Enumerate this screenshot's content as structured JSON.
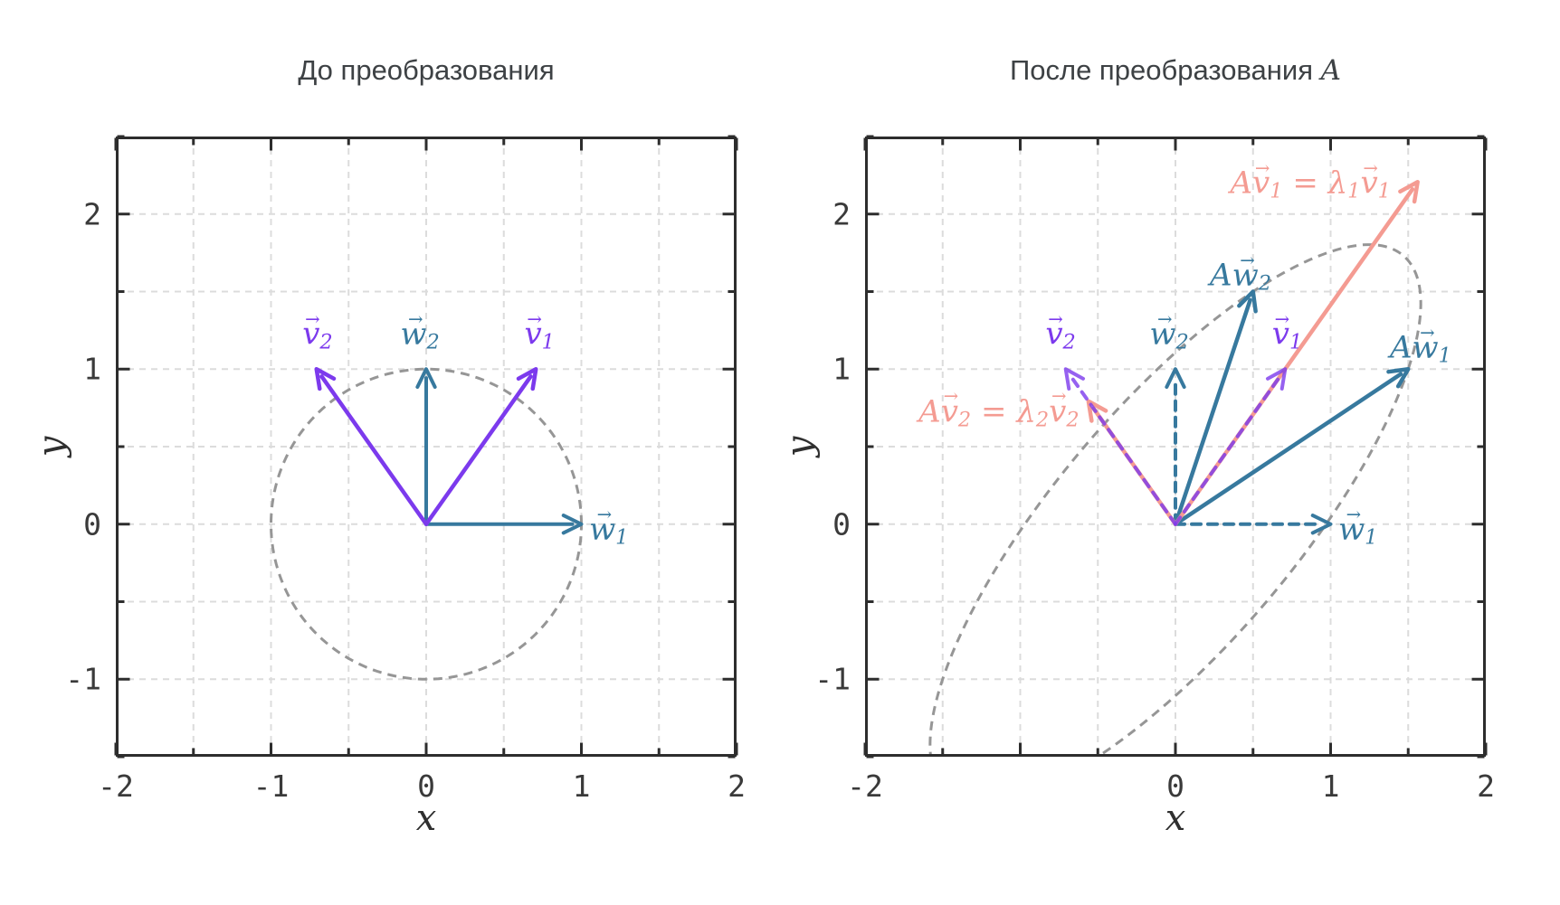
{
  "page": {
    "background": "#ffffff"
  },
  "colors": {
    "purple": "#7C3AED",
    "teal": "#37799E",
    "salmon": "#F49B92",
    "circle_gray": "#969696",
    "grid_gray": "#dcdcdc",
    "axis_dark": "#2d2d2d",
    "tick_text": "#3a3a3a",
    "title_text": "#3d4144"
  },
  "panels": [
    {
      "name": "before",
      "title": {
        "text": "До преобразования",
        "math": ""
      },
      "xlabel": "x",
      "ylabel": "y"
    },
    {
      "name": "after",
      "title": {
        "text": "После преобразования ",
        "math": "A"
      },
      "xlabel": "x",
      "ylabel": "y"
    }
  ],
  "chart_data": [
    {
      "type": "vector-plot",
      "name": "before-transformation",
      "title": "До преобразования",
      "xlabel": "x",
      "ylabel": "y",
      "xlim": [
        -2,
        2
      ],
      "ylim": [
        -1.5,
        2.5
      ],
      "minor_tick_step": 0.5,
      "grid": {
        "step": 0.5,
        "color": "#dcdcdc",
        "dash": "7 6",
        "width": 2
      },
      "xticks": [
        {
          "v": -2,
          "label": "-2"
        },
        {
          "v": -1,
          "label": "-1"
        },
        {
          "v": 0,
          "label": "0"
        },
        {
          "v": 1,
          "label": "1"
        },
        {
          "v": 2,
          "label": "2"
        }
      ],
      "yticks": [
        {
          "v": -1,
          "label": "-1"
        },
        {
          "v": 0,
          "label": "0"
        },
        {
          "v": 1,
          "label": "1"
        },
        {
          "v": 2,
          "label": "2"
        }
      ],
      "curves": [
        {
          "name": "unit-circle",
          "matrix": [
            [
              1,
              0
            ],
            [
              0,
              1
            ]
          ],
          "color": "#969696",
          "dash": "10 7",
          "width": 3
        }
      ],
      "vectors": [
        {
          "name": "w1",
          "tip": [
            1,
            0
          ],
          "color": "#37799E",
          "width": 4
        },
        {
          "name": "w2",
          "tip": [
            0,
            1
          ],
          "color": "#37799E",
          "width": 4
        },
        {
          "name": "v1",
          "tip": [
            0.7071,
            1
          ],
          "color": "#7C3AED",
          "width": 4.5
        },
        {
          "name": "v2",
          "tip": [
            -0.7071,
            1
          ],
          "color": "#7C3AED",
          "width": 4.5
        }
      ],
      "labels": [
        {
          "name": "label-v2",
          "text": "v⃗₂",
          "pos": [
            -0.7,
            1.16
          ],
          "anchor": "middle",
          "color": "#7C3AED",
          "tokens": [
            {
              "t": "v",
              "vec": true,
              "sub": "2"
            }
          ]
        },
        {
          "name": "label-w2",
          "text": "w⃗₂",
          "pos": [
            -0.04,
            1.16
          ],
          "anchor": "middle",
          "color": "#37799E",
          "tokens": [
            {
              "t": "w",
              "vec": true,
              "sub": "2"
            }
          ]
        },
        {
          "name": "label-v1",
          "text": "v⃗₁",
          "pos": [
            0.73,
            1.16
          ],
          "anchor": "middle",
          "color": "#7C3AED",
          "tokens": [
            {
              "t": "v",
              "vec": true,
              "sub": "1"
            }
          ]
        },
        {
          "name": "label-w1",
          "text": "w⃗₁",
          "pos": [
            1.05,
            -0.1
          ],
          "anchor": "start",
          "color": "#37799E",
          "tokens": [
            {
              "t": "w",
              "vec": true,
              "sub": "1"
            }
          ]
        }
      ]
    },
    {
      "type": "vector-plot",
      "name": "after-transformation",
      "title": "После преобразования A",
      "xlabel": "x",
      "ylabel": "y",
      "xlim": [
        -2,
        2
      ],
      "ylim": [
        -1.5,
        2.5
      ],
      "minor_tick_step": 0.5,
      "grid": {
        "step": 0.5,
        "color": "#dcdcdc",
        "dash": "7 6",
        "width": 2
      },
      "transform_matrix": [
        [
          1.5,
          0.5
        ],
        [
          1.0,
          1.5
        ]
      ],
      "xticks": [
        {
          "v": -2,
          "label": "-2"
        },
        {
          "v": -1,
          "label": ""
        },
        {
          "v": 0,
          "label": "0"
        },
        {
          "v": 1,
          "label": "1"
        },
        {
          "v": 2,
          "label": "2"
        }
      ],
      "yticks": [
        {
          "v": -1,
          "label": "-1"
        },
        {
          "v": 0,
          "label": "0"
        },
        {
          "v": 1,
          "label": "1"
        },
        {
          "v": 2,
          "label": "2"
        }
      ],
      "curves": [
        {
          "name": "transformed-unit-circle",
          "matrix": [
            [
              1.5,
              0.5
            ],
            [
              1.0,
              1.5
            ]
          ],
          "color": "#969696",
          "dash": "10 7",
          "width": 3
        }
      ],
      "vectors": [
        {
          "name": "w1-original",
          "tip": [
            1,
            0
          ],
          "color": "#37799E",
          "width": 4,
          "dash": "10 8"
        },
        {
          "name": "w2-original",
          "tip": [
            0,
            1
          ],
          "color": "#37799E",
          "width": 4,
          "dash": "10 8"
        },
        {
          "name": "Aw1",
          "tip": [
            1.5,
            1
          ],
          "color": "#37799E",
          "width": 4.5
        },
        {
          "name": "Aw2",
          "tip": [
            0.5,
            1.5
          ],
          "color": "#37799E",
          "width": 4.5
        },
        {
          "name": "Av1",
          "tip": [
            1.5607,
            2.2071
          ],
          "color": "#F49B92",
          "width": 4.5
        },
        {
          "name": "Av2",
          "tip": [
            -0.5607,
            0.7929
          ],
          "color": "#F49B92",
          "width": 4.5
        },
        {
          "name": "v1-original",
          "tip": [
            0.7071,
            1
          ],
          "color": "#7C3AED",
          "width": 4,
          "dash": "9 8",
          "opacity": 0.8
        },
        {
          "name": "v2-original",
          "tip": [
            -0.7071,
            1
          ],
          "color": "#7C3AED",
          "width": 4,
          "dash": "9 8",
          "opacity": 0.8
        }
      ],
      "labels": [
        {
          "name": "label-v2",
          "text": "v⃗₂",
          "pos": [
            -0.74,
            1.16
          ],
          "anchor": "middle",
          "color": "#7C3AED",
          "tokens": [
            {
              "t": "v",
              "vec": true,
              "sub": "2"
            }
          ]
        },
        {
          "name": "label-w2",
          "text": "w⃗₂",
          "pos": [
            -0.04,
            1.16
          ],
          "anchor": "middle",
          "color": "#37799E",
          "tokens": [
            {
              "t": "w",
              "vec": true,
              "sub": "2"
            }
          ]
        },
        {
          "name": "label-v1",
          "text": "v⃗₁",
          "pos": [
            0.72,
            1.16
          ],
          "anchor": "middle",
          "color": "#7C3AED",
          "tokens": [
            {
              "t": "v",
              "vec": true,
              "sub": "1"
            }
          ]
        },
        {
          "name": "label-w1",
          "text": "w⃗₁",
          "pos": [
            1.05,
            -0.1
          ],
          "anchor": "start",
          "color": "#37799E",
          "tokens": [
            {
              "t": "w",
              "vec": true,
              "sub": "1"
            }
          ]
        },
        {
          "name": "label-Aw2",
          "text": "Aw⃗₂",
          "pos": [
            0.42,
            1.54
          ],
          "anchor": "middle",
          "color": "#37799E",
          "tokens": [
            {
              "t": "A"
            },
            {
              "t": "w",
              "vec": true,
              "sub": "2"
            }
          ]
        },
        {
          "name": "label-Aw1",
          "text": "Aw⃗₁",
          "pos": [
            1.58,
            1.07
          ],
          "anchor": "middle",
          "color": "#37799E",
          "tokens": [
            {
              "t": "A"
            },
            {
              "t": "w",
              "vec": true,
              "sub": "1"
            }
          ]
        },
        {
          "name": "label-Av1-eq",
          "text": "Av⃗₁ = λ₁v⃗₁",
          "pos": [
            0.87,
            2.13
          ],
          "anchor": "middle",
          "color": "#F49B92",
          "tokens": [
            {
              "t": "A"
            },
            {
              "t": "v",
              "vec": true,
              "sub": "1"
            },
            {
              "t": " = ",
              "up": true
            },
            {
              "t": "λ",
              "sub": "1"
            },
            {
              "t": "v",
              "vec": true,
              "sub": "1"
            }
          ]
        },
        {
          "name": "label-Av2-eq",
          "text": "Av⃗₂ = λ₂v⃗₂",
          "pos": [
            -0.62,
            0.66
          ],
          "anchor": "end",
          "color": "#F49B92",
          "tokens": [
            {
              "t": "A"
            },
            {
              "t": "v",
              "vec": true,
              "sub": "2"
            },
            {
              "t": " = ",
              "up": true
            },
            {
              "t": "λ",
              "sub": "2"
            },
            {
              "t": "v",
              "vec": true,
              "sub": "2"
            }
          ]
        }
      ]
    }
  ]
}
